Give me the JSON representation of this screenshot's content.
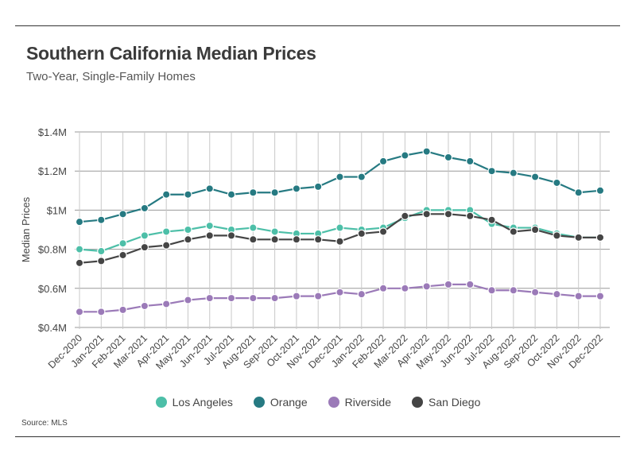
{
  "header": {
    "title": "Southern California Median Prices",
    "subtitle": "Two-Year, Single-Family Homes"
  },
  "footer": {
    "source": "Source:  MLS"
  },
  "chart_data": {
    "type": "line",
    "title": "Southern California Median Prices",
    "subtitle": "Two-Year, Single-Family Homes",
    "xlabel": "",
    "ylabel": "Median Prices",
    "ylim": [
      0.4,
      1.4
    ],
    "yticks": [
      {
        "value": 0.4,
        "label": "$0.4M"
      },
      {
        "value": 0.6,
        "label": "$0.6M"
      },
      {
        "value": 0.8,
        "label": "$0.8M"
      },
      {
        "value": 1.0,
        "label": "$1M"
      },
      {
        "value": 1.2,
        "label": "$1.2M"
      },
      {
        "value": 1.4,
        "label": "$1.4M"
      }
    ],
    "grid": true,
    "legend_position": "bottom",
    "categories": [
      "Dec-2020",
      "Jan-2021",
      "Feb-2021",
      "Mar-2021",
      "Apr-2021",
      "May-2021",
      "Jun-2021",
      "Jul-2021",
      "Aug-2021",
      "Sep-2021",
      "Oct-2021",
      "Nov-2021",
      "Dec-2021",
      "Jan-2022",
      "Feb-2022",
      "Mar-2022",
      "Apr-2022",
      "May-2022",
      "Jun-2022",
      "Jul-2022",
      "Aug-2022",
      "Sep-2022",
      "Oct-2022",
      "Nov-2022",
      "Dec-2022"
    ],
    "series": [
      {
        "name": "Los Angeles",
        "color": "#4dbfa8",
        "values": [
          0.8,
          0.79,
          0.83,
          0.87,
          0.89,
          0.9,
          0.92,
          0.9,
          0.91,
          0.89,
          0.88,
          0.88,
          0.91,
          0.9,
          0.91,
          0.96,
          1.0,
          1.0,
          1.0,
          0.93,
          0.91,
          0.91,
          0.88,
          0.86,
          0.86
        ]
      },
      {
        "name": "Orange",
        "color": "#267a82",
        "values": [
          0.94,
          0.95,
          0.98,
          1.01,
          1.08,
          1.08,
          1.11,
          1.08,
          1.09,
          1.09,
          1.11,
          1.12,
          1.17,
          1.17,
          1.25,
          1.28,
          1.3,
          1.27,
          1.25,
          1.2,
          1.19,
          1.17,
          1.14,
          1.09,
          1.1
        ]
      },
      {
        "name": "Riverside",
        "color": "#9b7ab8",
        "values": [
          0.48,
          0.48,
          0.49,
          0.51,
          0.52,
          0.54,
          0.55,
          0.55,
          0.55,
          0.55,
          0.56,
          0.56,
          0.58,
          0.57,
          0.6,
          0.6,
          0.61,
          0.62,
          0.62,
          0.59,
          0.59,
          0.58,
          0.57,
          0.56,
          0.56
        ]
      },
      {
        "name": "San Diego",
        "color": "#454545",
        "values": [
          0.73,
          0.74,
          0.77,
          0.81,
          0.82,
          0.85,
          0.87,
          0.87,
          0.85,
          0.85,
          0.85,
          0.85,
          0.84,
          0.88,
          0.89,
          0.97,
          0.98,
          0.98,
          0.97,
          0.95,
          0.89,
          0.9,
          0.87,
          0.86,
          0.86
        ]
      }
    ]
  }
}
